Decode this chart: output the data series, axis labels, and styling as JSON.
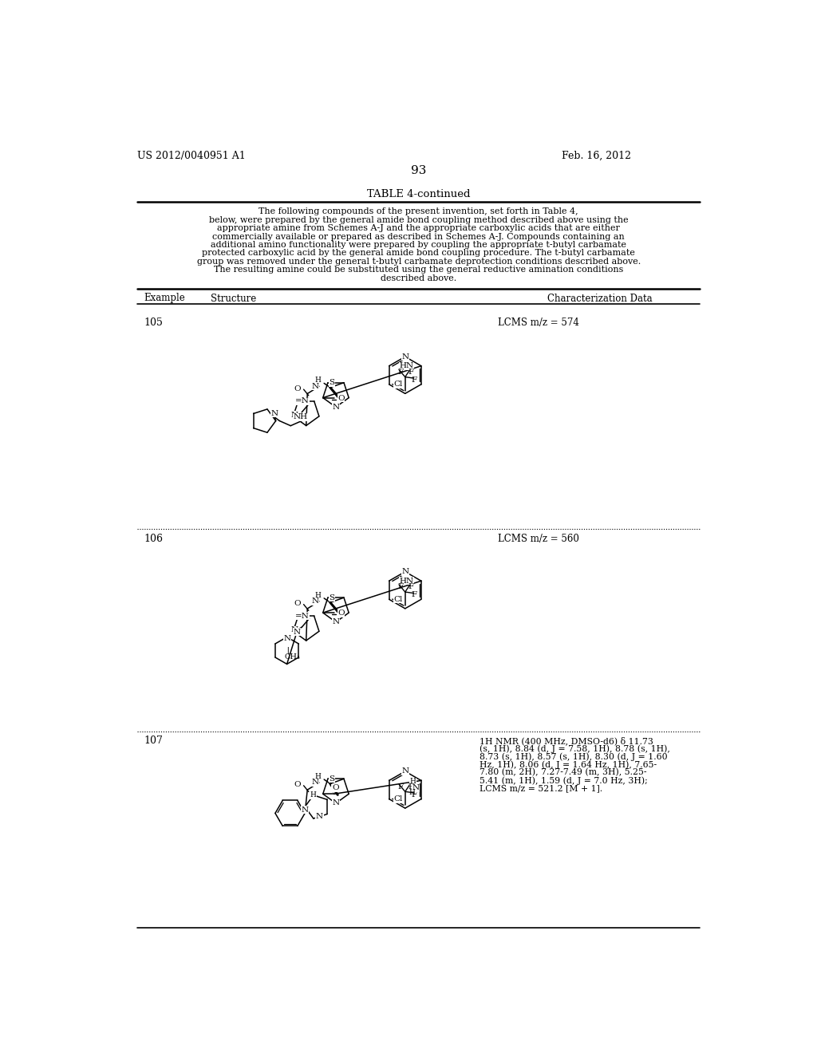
{
  "page_number": "93",
  "patent_number": "US 2012/0040951 A1",
  "patent_date": "Feb. 16, 2012",
  "table_title": "TABLE 4-continued",
  "description_lines": [
    "The following compounds of the present invention, set forth in Table 4,",
    "below, were prepared by the general amide bond coupling method described above using the",
    "appropriate amine from Schemes A-J and the appropriate carboxylic acids that are either",
    "commercially available or prepared as described in Schemes A-J. Compounds containing an",
    "additional amino functionality were prepared by coupling the appropriate t-butyl carbamate",
    "protected carboxylic acid by the general amide bond coupling procedure. The t-butyl carbamate",
    "group was removed under the general t-butyl carbamate deprotection conditions described above.",
    "The resulting amine could be substituted using the general reductive amination conditions",
    "described above."
  ],
  "col_example": "Example",
  "col_structure": "Structure",
  "col_chardata": "Characterization Data",
  "ex105_char": "LCMS m/z = 574",
  "ex106_char": "LCMS m/z = 560",
  "ex107_char_lines": [
    "1H NMR (400 MHz, DMSO-d6) δ 11.73",
    "(s, 1H), 8.84 (d, J = 7.58, 1H), 8.78 (s, 1H),",
    "8.73 (s, 1H), 8.57 (s, 1H), 8.30 (d, J = 1.60",
    "Hz, 1H), 8.06 (d, J = 1.64 Hz, 1H), 7.65-",
    "7.80 (m, 2H), 7.27-7.49 (m, 3H), 5.25-",
    "5.41 (m, 1H), 1.59 (d, J = 7.0 Hz, 3H);",
    "LCMS m/z = 521.2 [M + 1]."
  ],
  "bg_color": "#ffffff",
  "text_color": "#000000"
}
